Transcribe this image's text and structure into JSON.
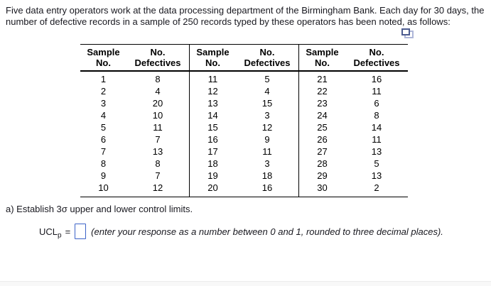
{
  "intro": {
    "line1": "Five data entry operators work at the data processing department of the Birmingham Bank. Each day for 30 days, the",
    "line2": "number of defective records in a sample of 250 records typed by these operators has been noted, as follows:"
  },
  "icons": {
    "copy_table": "copy-table-icon"
  },
  "table": {
    "header": {
      "sample_line1": "Sample",
      "sample_line2": "No.",
      "defectives_line1": "No.",
      "defectives_line2": "Defectives"
    },
    "groups": [
      {
        "rows": [
          {
            "sample": "1",
            "defectives": "8"
          },
          {
            "sample": "2",
            "defectives": "4"
          },
          {
            "sample": "3",
            "defectives": "20"
          },
          {
            "sample": "4",
            "defectives": "10"
          },
          {
            "sample": "5",
            "defectives": "11"
          },
          {
            "sample": "6",
            "defectives": "7"
          },
          {
            "sample": "7",
            "defectives": "13"
          },
          {
            "sample": "8",
            "defectives": "8"
          },
          {
            "sample": "9",
            "defectives": "7"
          },
          {
            "sample": "10",
            "defectives": "12"
          }
        ]
      },
      {
        "rows": [
          {
            "sample": "11",
            "defectives": "5"
          },
          {
            "sample": "12",
            "defectives": "4"
          },
          {
            "sample": "13",
            "defectives": "15"
          },
          {
            "sample": "14",
            "defectives": "3"
          },
          {
            "sample": "15",
            "defectives": "12"
          },
          {
            "sample": "16",
            "defectives": "9"
          },
          {
            "sample": "17",
            "defectives": "11"
          },
          {
            "sample": "18",
            "defectives": "3"
          },
          {
            "sample": "19",
            "defectives": "18"
          },
          {
            "sample": "20",
            "defectives": "16"
          }
        ]
      },
      {
        "rows": [
          {
            "sample": "21",
            "defectives": "16"
          },
          {
            "sample": "22",
            "defectives": "11"
          },
          {
            "sample": "23",
            "defectives": "6"
          },
          {
            "sample": "24",
            "defectives": "8"
          },
          {
            "sample": "25",
            "defectives": "14"
          },
          {
            "sample": "26",
            "defectives": "11"
          },
          {
            "sample": "27",
            "defectives": "13"
          },
          {
            "sample": "28",
            "defectives": "5"
          },
          {
            "sample": "29",
            "defectives": "13"
          },
          {
            "sample": "30",
            "defectives": "2"
          }
        ]
      }
    ]
  },
  "question": {
    "part_a": "a) Establish 3σ upper and lower control limits.",
    "ucl_base": "UCL",
    "ucl_sub": "p",
    "equals": "=",
    "input_value": "",
    "hint": "(enter your response as a number between 0 and 1, rounded to three decimal places)."
  },
  "colors": {
    "input_border": "#3c63c8",
    "icon_front": "#4d5c90",
    "icon_back": "#aeb6d8",
    "text": "#18181f"
  }
}
